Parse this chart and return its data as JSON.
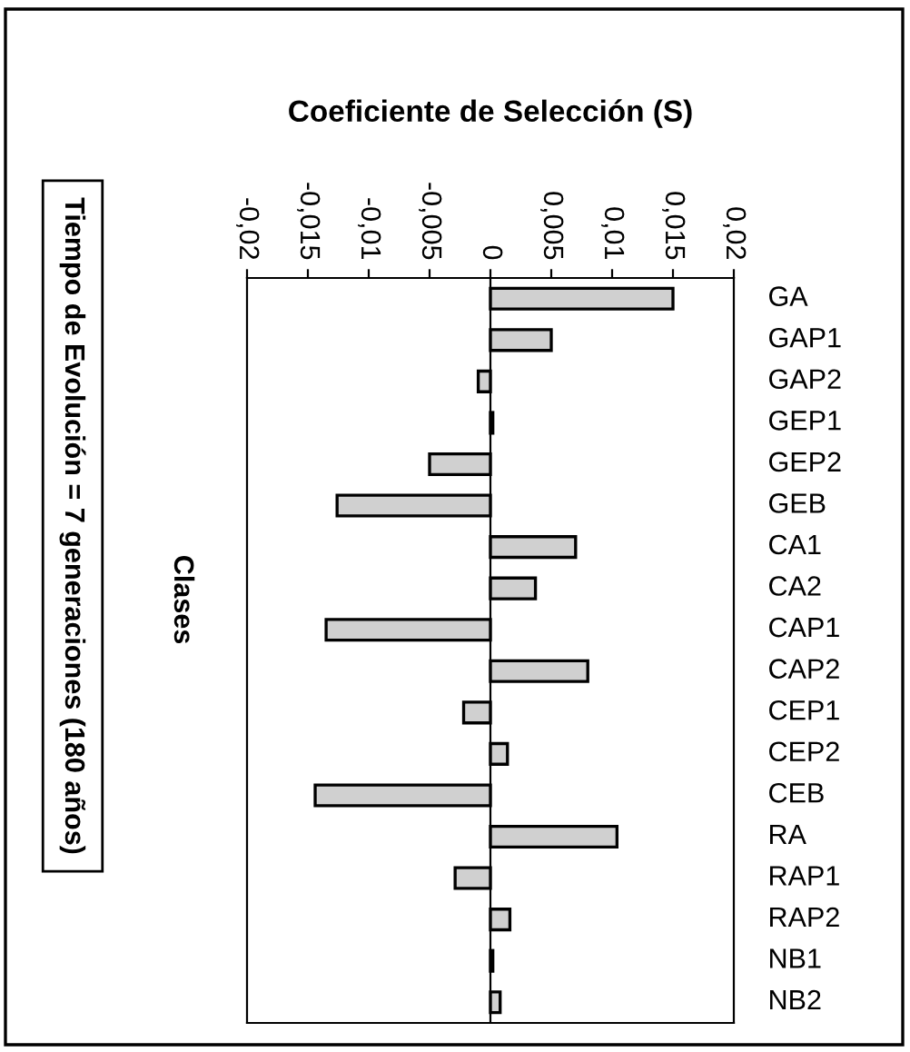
{
  "chart_data": {
    "type": "bar",
    "orientation": "horizontal",
    "title": "Coeficiente de Selección (S)",
    "ylabel": "Clases",
    "annotations": [
      "Tiempo de Evolución = 7 generaciones (180 años)"
    ],
    "categories": [
      "GA",
      "GAP1",
      "GAP2",
      "GEP1",
      "GEP2",
      "GEB",
      "CA1",
      "CA2",
      "CAP1",
      "CAP2",
      "CEP1",
      "CEP2",
      "CEB",
      "RA",
      "RAP1",
      "RAP2",
      "NB1",
      "NB2"
    ],
    "values": [
      0.015,
      0.005,
      -0.001,
      0.0002,
      -0.005,
      -0.0126,
      0.007,
      0.0037,
      -0.0135,
      0.008,
      -0.0022,
      0.0014,
      -0.0144,
      0.0104,
      -0.0029,
      0.0016,
      0.0002,
      0.0008
    ],
    "color": "#d0d0d0",
    "xlim": [
      -0.02,
      0.02
    ],
    "xticks": [
      {
        "value": -0.02,
        "label": "-0,02"
      },
      {
        "value": -0.015,
        "label": "-0,015"
      },
      {
        "value": -0.01,
        "label": "-0,01"
      },
      {
        "value": -0.005,
        "label": "-0,005"
      },
      0,
      {
        "value": 0.005,
        "label": "0,005"
      },
      {
        "value": 0.01,
        "label": "0,01"
      },
      {
        "value": 0.015,
        "label": "0,015"
      },
      {
        "value": 0.02,
        "label": "0,02"
      }
    ],
    "legend": false
  }
}
